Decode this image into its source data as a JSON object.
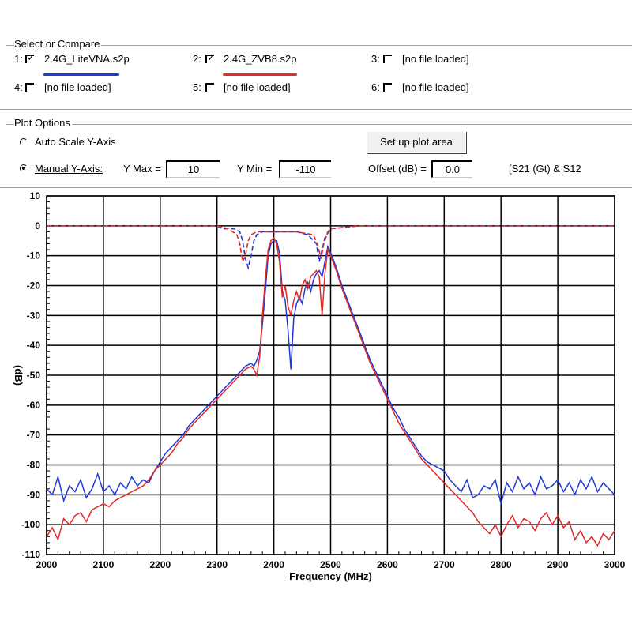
{
  "select": {
    "title": "Select or Compare",
    "slots": [
      {
        "index": "1:",
        "checked": true,
        "name": "2.4G_LiteVNA.s2p",
        "color": "#1f38d8"
      },
      {
        "index": "2:",
        "checked": true,
        "name": "2.4G_ZVB8.s2p",
        "color": "#e02a2a"
      },
      {
        "index": "3:",
        "checked": false,
        "name": "[no file loaded]"
      },
      {
        "index": "4:",
        "checked": false,
        "name": "[no file loaded]"
      },
      {
        "index": "5:",
        "checked": false,
        "name": "[no file loaded]"
      },
      {
        "index": "6:",
        "checked": false,
        "name": "[no file loaded]"
      }
    ]
  },
  "plot_options": {
    "title": "Plot Options",
    "auto_scale_label": "Auto Scale Y-Axis",
    "manual_label": "Manual Y-Axis:",
    "auto_selected": false,
    "manual_selected": true,
    "setup_button": "Set up plot area",
    "ymax_label": "Y Max =",
    "ymax_value": "10",
    "ymin_label": "Y Min =",
    "ymin_value": "-110",
    "offset_label": "Offset (dB) =",
    "offset_value": "0.0",
    "mode_text": "[S21 (Gt) & S12"
  },
  "chart_data": {
    "type": "line",
    "ylabel": "(dB)",
    "xlabel": "Frequency (MHz)",
    "xlim": [
      2000,
      3000
    ],
    "ylim": [
      -110,
      10
    ],
    "x_ticks": [
      2000,
      2100,
      2200,
      2300,
      2400,
      2500,
      2600,
      2700,
      2800,
      2900,
      3000
    ],
    "y_ticks": [
      10,
      0,
      -10,
      -20,
      -30,
      -40,
      -50,
      -60,
      -70,
      -80,
      -90,
      -100,
      -110
    ],
    "grid": true,
    "series": [
      {
        "name": "2.4G_LiteVNA.s2p",
        "color": "#1f38d8",
        "points": [
          [
            2000,
            -88
          ],
          [
            2010,
            -90
          ],
          [
            2020,
            -84
          ],
          [
            2030,
            -92
          ],
          [
            2040,
            -87
          ],
          [
            2050,
            -89
          ],
          [
            2060,
            -85
          ],
          [
            2070,
            -91
          ],
          [
            2080,
            -88
          ],
          [
            2090,
            -83
          ],
          [
            2100,
            -89
          ],
          [
            2110,
            -87
          ],
          [
            2120,
            -90
          ],
          [
            2130,
            -86
          ],
          [
            2140,
            -88
          ],
          [
            2150,
            -84
          ],
          [
            2160,
            -87
          ],
          [
            2170,
            -85
          ],
          [
            2180,
            -86
          ],
          [
            2190,
            -82
          ],
          [
            2200,
            -79
          ],
          [
            2210,
            -76
          ],
          [
            2220,
            -74
          ],
          [
            2230,
            -72
          ],
          [
            2240,
            -70
          ],
          [
            2250,
            -67
          ],
          [
            2260,
            -65
          ],
          [
            2270,
            -63
          ],
          [
            2280,
            -61
          ],
          [
            2290,
            -59
          ],
          [
            2300,
            -57
          ],
          [
            2310,
            -55
          ],
          [
            2320,
            -53
          ],
          [
            2330,
            -51
          ],
          [
            2340,
            -49
          ],
          [
            2350,
            -47
          ],
          [
            2360,
            -46
          ],
          [
            2365,
            -47
          ],
          [
            2370,
            -45
          ],
          [
            2375,
            -42
          ],
          [
            2380,
            -33
          ],
          [
            2385,
            -22
          ],
          [
            2390,
            -10
          ],
          [
            2395,
            -6
          ],
          [
            2400,
            -5
          ],
          [
            2405,
            -5
          ],
          [
            2410,
            -9
          ],
          [
            2415,
            -22
          ],
          [
            2420,
            -25
          ],
          [
            2425,
            -35
          ],
          [
            2430,
            -48
          ],
          [
            2435,
            -31
          ],
          [
            2440,
            -26
          ],
          [
            2445,
            -24
          ],
          [
            2450,
            -26
          ],
          [
            2455,
            -21
          ],
          [
            2460,
            -19
          ],
          [
            2465,
            -22
          ],
          [
            2470,
            -18
          ],
          [
            2475,
            -16
          ],
          [
            2480,
            -15
          ],
          [
            2485,
            -17
          ],
          [
            2490,
            -12
          ],
          [
            2495,
            -7
          ],
          [
            2500,
            -9
          ],
          [
            2510,
            -14
          ],
          [
            2520,
            -20
          ],
          [
            2530,
            -25
          ],
          [
            2540,
            -30
          ],
          [
            2550,
            -35
          ],
          [
            2560,
            -40
          ],
          [
            2570,
            -45
          ],
          [
            2580,
            -49
          ],
          [
            2590,
            -53
          ],
          [
            2600,
            -57
          ],
          [
            2610,
            -61
          ],
          [
            2620,
            -64
          ],
          [
            2630,
            -68
          ],
          [
            2640,
            -71
          ],
          [
            2650,
            -74
          ],
          [
            2660,
            -77
          ],
          [
            2670,
            -79
          ],
          [
            2680,
            -80
          ],
          [
            2690,
            -81
          ],
          [
            2700,
            -82
          ],
          [
            2710,
            -85
          ],
          [
            2720,
            -87
          ],
          [
            2730,
            -89
          ],
          [
            2740,
            -85
          ],
          [
            2750,
            -91
          ],
          [
            2760,
            -90
          ],
          [
            2770,
            -87
          ],
          [
            2780,
            -88
          ],
          [
            2790,
            -85
          ],
          [
            2800,
            -93
          ],
          [
            2810,
            -86
          ],
          [
            2820,
            -89
          ],
          [
            2830,
            -84
          ],
          [
            2840,
            -88
          ],
          [
            2850,
            -86
          ],
          [
            2860,
            -90
          ],
          [
            2870,
            -84
          ],
          [
            2880,
            -88
          ],
          [
            2890,
            -87
          ],
          [
            2900,
            -85
          ],
          [
            2910,
            -89
          ],
          [
            2920,
            -86
          ],
          [
            2930,
            -90
          ],
          [
            2940,
            -85
          ],
          [
            2950,
            -88
          ],
          [
            2960,
            -84
          ],
          [
            2970,
            -89
          ],
          [
            2980,
            -86
          ],
          [
            2990,
            -88
          ],
          [
            3000,
            -90
          ]
        ],
        "s12_points": [
          [
            2000,
            0
          ],
          [
            2100,
            0
          ],
          [
            2200,
            0
          ],
          [
            2300,
            0
          ],
          [
            2310,
            -1
          ],
          [
            2320,
            -1
          ],
          [
            2330,
            -1
          ],
          [
            2340,
            -2
          ],
          [
            2345,
            -5
          ],
          [
            2350,
            -11
          ],
          [
            2355,
            -14
          ],
          [
            2360,
            -10
          ],
          [
            2365,
            -5
          ],
          [
            2370,
            -3
          ],
          [
            2380,
            -2
          ],
          [
            2390,
            -2
          ],
          [
            2400,
            -2
          ],
          [
            2420,
            -2
          ],
          [
            2440,
            -2
          ],
          [
            2460,
            -3
          ],
          [
            2475,
            -6
          ],
          [
            2480,
            -12
          ],
          [
            2485,
            -8
          ],
          [
            2490,
            -4
          ],
          [
            2500,
            -1
          ],
          [
            2550,
            0
          ],
          [
            2600,
            0
          ],
          [
            3000,
            0
          ]
        ]
      },
      {
        "name": "2.4G_ZVB8.s2p",
        "color": "#e02a2a",
        "points": [
          [
            2000,
            -104
          ],
          [
            2010,
            -101
          ],
          [
            2020,
            -105
          ],
          [
            2030,
            -98
          ],
          [
            2040,
            -100
          ],
          [
            2050,
            -97
          ],
          [
            2060,
            -96
          ],
          [
            2070,
            -99
          ],
          [
            2080,
            -95
          ],
          [
            2090,
            -94
          ],
          [
            2100,
            -93
          ],
          [
            2110,
            -94
          ],
          [
            2120,
            -92
          ],
          [
            2130,
            -91
          ],
          [
            2140,
            -90
          ],
          [
            2150,
            -89
          ],
          [
            2160,
            -88
          ],
          [
            2170,
            -87
          ],
          [
            2180,
            -85
          ],
          [
            2190,
            -82
          ],
          [
            2200,
            -80
          ],
          [
            2210,
            -78
          ],
          [
            2220,
            -76
          ],
          [
            2230,
            -73
          ],
          [
            2240,
            -71
          ],
          [
            2250,
            -68
          ],
          [
            2260,
            -66
          ],
          [
            2270,
            -64
          ],
          [
            2280,
            -62
          ],
          [
            2290,
            -60
          ],
          [
            2300,
            -58
          ],
          [
            2310,
            -56
          ],
          [
            2320,
            -54
          ],
          [
            2330,
            -52
          ],
          [
            2340,
            -50
          ],
          [
            2350,
            -48
          ],
          [
            2360,
            -47
          ],
          [
            2365,
            -48
          ],
          [
            2370,
            -50
          ],
          [
            2375,
            -44
          ],
          [
            2380,
            -30
          ],
          [
            2385,
            -18
          ],
          [
            2390,
            -8
          ],
          [
            2395,
            -5
          ],
          [
            2400,
            -4
          ],
          [
            2405,
            -6
          ],
          [
            2410,
            -12
          ],
          [
            2415,
            -24
          ],
          [
            2420,
            -20
          ],
          [
            2425,
            -27
          ],
          [
            2430,
            -30
          ],
          [
            2435,
            -25
          ],
          [
            2440,
            -22
          ],
          [
            2445,
            -25
          ],
          [
            2450,
            -20
          ],
          [
            2455,
            -18
          ],
          [
            2460,
            -21
          ],
          [
            2465,
            -17
          ],
          [
            2470,
            -16
          ],
          [
            2475,
            -15
          ],
          [
            2480,
            -17
          ],
          [
            2485,
            -30
          ],
          [
            2490,
            -16
          ],
          [
            2495,
            -8
          ],
          [
            2500,
            -10
          ],
          [
            2510,
            -15
          ],
          [
            2520,
            -21
          ],
          [
            2530,
            -26
          ],
          [
            2540,
            -31
          ],
          [
            2550,
            -36
          ],
          [
            2560,
            -41
          ],
          [
            2570,
            -46
          ],
          [
            2580,
            -50
          ],
          [
            2590,
            -54
          ],
          [
            2600,
            -58
          ],
          [
            2610,
            -62
          ],
          [
            2620,
            -66
          ],
          [
            2630,
            -69
          ],
          [
            2640,
            -72
          ],
          [
            2650,
            -75
          ],
          [
            2660,
            -78
          ],
          [
            2670,
            -80
          ],
          [
            2680,
            -82
          ],
          [
            2690,
            -84
          ],
          [
            2700,
            -86
          ],
          [
            2710,
            -88
          ],
          [
            2720,
            -90
          ],
          [
            2730,
            -92
          ],
          [
            2740,
            -94
          ],
          [
            2750,
            -96
          ],
          [
            2760,
            -99
          ],
          [
            2770,
            -101
          ],
          [
            2780,
            -103
          ],
          [
            2790,
            -100
          ],
          [
            2800,
            -104
          ],
          [
            2810,
            -100
          ],
          [
            2820,
            -97
          ],
          [
            2830,
            -101
          ],
          [
            2840,
            -98
          ],
          [
            2850,
            -99
          ],
          [
            2860,
            -102
          ],
          [
            2870,
            -98
          ],
          [
            2880,
            -96
          ],
          [
            2890,
            -100
          ],
          [
            2900,
            -97
          ],
          [
            2910,
            -101
          ],
          [
            2920,
            -99
          ],
          [
            2930,
            -105
          ],
          [
            2940,
            -102
          ],
          [
            2950,
            -106
          ],
          [
            2960,
            -104
          ],
          [
            2970,
            -107
          ],
          [
            2980,
            -103
          ],
          [
            2990,
            -105
          ],
          [
            3000,
            -102
          ]
        ],
        "s12_points": [
          [
            2000,
            0
          ],
          [
            2100,
            0
          ],
          [
            2200,
            0
          ],
          [
            2300,
            0
          ],
          [
            2320,
            -1
          ],
          [
            2335,
            -3
          ],
          [
            2340,
            -6
          ],
          [
            2345,
            -12
          ],
          [
            2350,
            -10
          ],
          [
            2355,
            -5
          ],
          [
            2360,
            -3
          ],
          [
            2370,
            -2
          ],
          [
            2400,
            -2
          ],
          [
            2440,
            -2
          ],
          [
            2470,
            -3
          ],
          [
            2478,
            -7
          ],
          [
            2483,
            -11
          ],
          [
            2488,
            -6
          ],
          [
            2495,
            -2
          ],
          [
            2500,
            -1
          ],
          [
            2550,
            0
          ],
          [
            3000,
            0
          ]
        ]
      }
    ]
  }
}
